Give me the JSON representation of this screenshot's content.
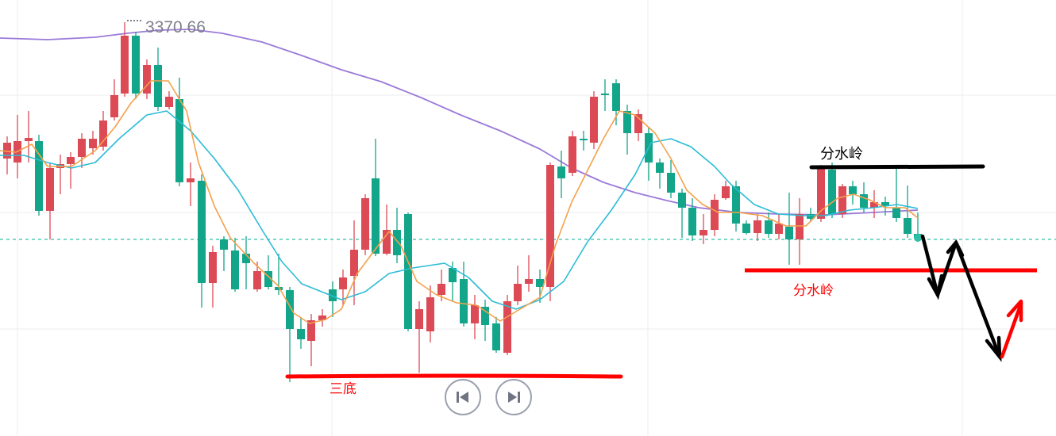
{
  "chart_data": {
    "type": "candlestick",
    "price_label": "3370.66",
    "y_reference": 3370.66,
    "colors": {
      "up": "#dc4a56",
      "down": "#13a58a",
      "ma_fast": "#f5a04a",
      "ma_mid": "#2bbcd6",
      "ma_slow": "#9b79d9",
      "dashed_level": "#2fbfa8",
      "annotation_black": "#000000",
      "annotation_red": "#ff0000"
    },
    "annotations": {
      "black_line_label": "分水岭",
      "red_line_label": "分水岭",
      "bottom_line_label": "三底"
    },
    "grid": true
  },
  "controls": {
    "prev_icon": "skip-previous-icon",
    "next_icon": "skip-next-icon"
  }
}
